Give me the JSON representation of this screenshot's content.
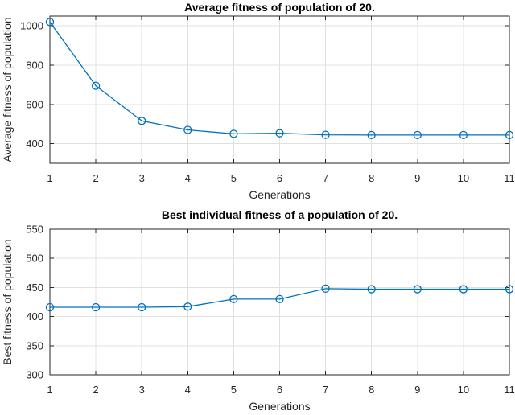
{
  "figure": {
    "background": "#ffffff",
    "axis_color": "#262626",
    "title_color": "#000000",
    "grid_color": "#e0e0e0"
  },
  "chart_data": [
    {
      "type": "line",
      "title": "Average fitness of population of 20.",
      "xlabel": "Generations",
      "ylabel": "Average fitness of population",
      "x": [
        1,
        2,
        3,
        4,
        5,
        6,
        7,
        8,
        9,
        10,
        11
      ],
      "values": [
        1020,
        695,
        516,
        470,
        450,
        453,
        445,
        444,
        444,
        444,
        444
      ],
      "xlim": [
        1,
        11
      ],
      "ylim": [
        300,
        1050
      ],
      "xticks": [
        1,
        2,
        3,
        4,
        5,
        6,
        7,
        8,
        9,
        10,
        11
      ],
      "yticks": [
        400,
        600,
        800,
        1000
      ],
      "grid": true,
      "legend": "none",
      "line_color": "#0072BD",
      "marker": "open-circle"
    },
    {
      "type": "line",
      "title": "Best individual fitness of a population of 20.",
      "xlabel": "Generations",
      "ylabel": "Best fitness of population",
      "x": [
        1,
        2,
        3,
        4,
        5,
        6,
        7,
        8,
        9,
        10,
        11
      ],
      "values": [
        416,
        416,
        416,
        417,
        430,
        430,
        448,
        447,
        447,
        447,
        447
      ],
      "xlim": [
        1,
        11
      ],
      "ylim": [
        300,
        550
      ],
      "xticks": [
        1,
        2,
        3,
        4,
        5,
        6,
        7,
        8,
        9,
        10,
        11
      ],
      "yticks": [
        300,
        350,
        400,
        450,
        500,
        550
      ],
      "grid": true,
      "legend": "none",
      "line_color": "#0072BD",
      "marker": "open-circle"
    }
  ]
}
